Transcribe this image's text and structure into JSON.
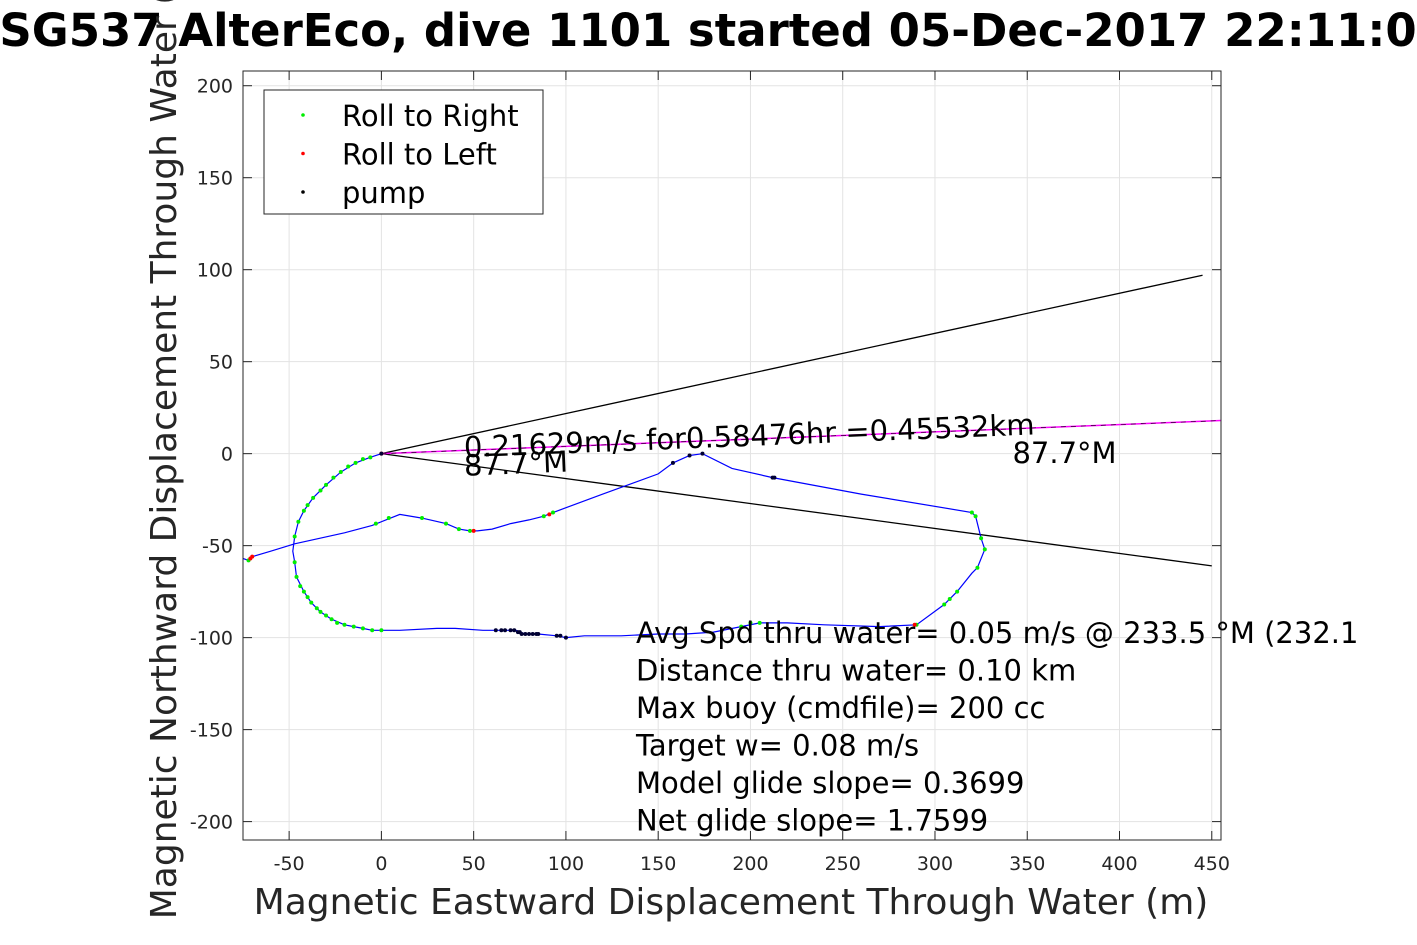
{
  "chart_data": {
    "type": "scatter",
    "title": "SG537 AlterEco, dive 1101 started 05-Dec-2017 22:11:0",
    "xlabel": "Magnetic Eastward Displacement Through Water (m)",
    "ylabel": "Magnetic Northward Displacement Through Water (",
    "xlim": [
      -75,
      455
    ],
    "ylim": [
      -210,
      208
    ],
    "xticks": [
      -50,
      0,
      50,
      100,
      150,
      200,
      250,
      300,
      350,
      400,
      450
    ],
    "yticks": [
      200,
      150,
      100,
      50,
      0,
      -50,
      -100,
      -150,
      -200
    ],
    "grid": true,
    "legend": {
      "placement": "top-left",
      "entries": [
        {
          "label": "Roll to Right",
          "color": "#00ee00"
        },
        {
          "label": "Roll to Left",
          "color": "#ff0000"
        },
        {
          "label": "pump",
          "color": "#000000"
        }
      ]
    },
    "colors": {
      "track": "#0000ff",
      "rays": "#000000",
      "heading": "#ff00ff",
      "roll_right": "#00ee00",
      "roll_left": "#ff0000",
      "pump": "#000033"
    },
    "track": [
      [
        -75,
        -57
      ],
      [
        -72,
        -58
      ],
      [
        -70,
        -56
      ],
      [
        -60,
        -53
      ],
      [
        -47,
        -49
      ],
      [
        -20,
        -43
      ],
      [
        -5,
        -39
      ],
      [
        10,
        -33
      ],
      [
        22,
        -35
      ],
      [
        35,
        -38
      ],
      [
        42,
        -41
      ],
      [
        48,
        -42
      ],
      [
        52,
        -42
      ],
      [
        60,
        -41
      ],
      [
        70,
        -38
      ],
      [
        80,
        -36
      ],
      [
        88,
        -34
      ],
      [
        93,
        -32
      ],
      [
        120,
        -22
      ],
      [
        150,
        -11
      ],
      [
        158,
        -5
      ],
      [
        167,
        -1
      ],
      [
        174,
        0
      ],
      [
        190,
        -8
      ],
      [
        212,
        -13
      ],
      [
        260,
        -22
      ],
      [
        320,
        -32
      ],
      [
        322,
        -34
      ],
      [
        325,
        -46
      ],
      [
        327,
        -52
      ],
      [
        323,
        -62
      ],
      [
        320,
        -65
      ],
      [
        312,
        -75
      ],
      [
        305,
        -82
      ],
      [
        290,
        -93
      ],
      [
        270,
        -94
      ],
      [
        240,
        -93
      ],
      [
        220,
        -92
      ],
      [
        205,
        -92
      ],
      [
        195,
        -94
      ],
      [
        180,
        -97
      ],
      [
        165,
        -98
      ],
      [
        150,
        -98
      ],
      [
        130,
        -99
      ],
      [
        110,
        -99
      ],
      [
        100,
        -100
      ],
      [
        95,
        -99
      ],
      [
        85,
        -98
      ],
      [
        78,
        -98
      ],
      [
        73,
        -96
      ],
      [
        67,
        -96
      ],
      [
        62,
        -96
      ],
      [
        55,
        -96
      ],
      [
        40,
        -95
      ],
      [
        30,
        -95
      ],
      [
        10,
        -96
      ],
      [
        0,
        -96
      ],
      [
        -5,
        -96
      ],
      [
        -10,
        -95
      ],
      [
        -15,
        -94
      ],
      [
        -20,
        -93
      ],
      [
        -27,
        -90
      ],
      [
        -33,
        -86
      ],
      [
        -38,
        -81
      ],
      [
        -42,
        -75
      ],
      [
        -46,
        -67
      ],
      [
        -47,
        -59
      ],
      [
        -48,
        -53
      ],
      [
        -47,
        -45
      ],
      [
        -45,
        -37
      ],
      [
        -42,
        -31
      ],
      [
        -37,
        -24
      ],
      [
        -30,
        -17
      ],
      [
        -22,
        -10
      ],
      [
        -14,
        -5
      ],
      [
        -6,
        -2
      ],
      [
        0,
        0
      ]
    ],
    "roll_right_points": [
      [
        -72,
        -58
      ],
      [
        -47,
        -59
      ],
      [
        -47,
        -45
      ],
      [
        -45,
        -37
      ],
      [
        -42,
        -31
      ],
      [
        -40,
        -28
      ],
      [
        -37,
        -24
      ],
      [
        -33,
        -20
      ],
      [
        -30,
        -17
      ],
      [
        -26,
        -13
      ],
      [
        -22,
        -10
      ],
      [
        -18,
        -7
      ],
      [
        -14,
        -5
      ],
      [
        -10,
        -3
      ],
      [
        -6,
        -2
      ],
      [
        -46,
        -67
      ],
      [
        -44,
        -72
      ],
      [
        -42,
        -75
      ],
      [
        -40,
        -78
      ],
      [
        -38,
        -81
      ],
      [
        -35,
        -84
      ],
      [
        -33,
        -86
      ],
      [
        -30,
        -88
      ],
      [
        -27,
        -90
      ],
      [
        -24,
        -92
      ],
      [
        -20,
        -93
      ],
      [
        -15,
        -94
      ],
      [
        -10,
        -95
      ],
      [
        -5,
        -96
      ],
      [
        0,
        -96
      ],
      [
        -3,
        -38
      ],
      [
        4,
        -35
      ],
      [
        22,
        -35
      ],
      [
        35,
        -38
      ],
      [
        42,
        -41
      ],
      [
        48,
        -42
      ],
      [
        88,
        -34
      ],
      [
        93,
        -32
      ],
      [
        320,
        -32
      ],
      [
        322,
        -34
      ],
      [
        325,
        -46
      ],
      [
        327,
        -52
      ],
      [
        323,
        -62
      ],
      [
        312,
        -75
      ],
      [
        308,
        -79
      ],
      [
        305,
        -82
      ],
      [
        290,
        -93
      ],
      [
        200,
        -92
      ],
      [
        205,
        -92
      ],
      [
        195,
        -94
      ]
    ],
    "roll_left_points": [
      [
        -71,
        -57
      ],
      [
        -70,
        -56
      ],
      [
        0,
        0
      ],
      [
        50,
        -42
      ],
      [
        91,
        -33
      ],
      [
        289,
        -93
      ]
    ],
    "pump_points": [
      [
        0,
        0
      ],
      [
        158,
        -5
      ],
      [
        167,
        -1
      ],
      [
        174,
        0
      ],
      [
        212,
        -13
      ],
      [
        213,
        -13
      ],
      [
        62,
        -96
      ],
      [
        65,
        -96
      ],
      [
        67,
        -96
      ],
      [
        70,
        -96
      ],
      [
        72,
        -96
      ],
      [
        74,
        -97
      ],
      [
        75,
        -97
      ],
      [
        76,
        -98
      ],
      [
        78,
        -98
      ],
      [
        80,
        -98
      ],
      [
        82,
        -98
      ],
      [
        84,
        -98
      ],
      [
        85,
        -98
      ],
      [
        95,
        -99
      ],
      [
        97,
        -99
      ],
      [
        100,
        -100
      ]
    ],
    "rays": [
      [
        [
          0,
          0
        ],
        [
          445,
          97
        ]
      ],
      [
        [
          0,
          0
        ],
        [
          450,
          -61
        ]
      ]
    ],
    "heading_line": [
      [
        0,
        0
      ],
      [
        455,
        18
      ]
    ],
    "annotations": [
      {
        "text": "0.21629m/s for0.58476hr =0.45532km",
        "x": 45,
        "y": -2,
        "rotate": -2.3
      },
      {
        "text": "87.7°M",
        "x": 45,
        "y": -12,
        "rotate": -2.3
      },
      {
        "text": "87.7°M",
        "x": 342,
        "y": -5,
        "rotate": 0
      }
    ],
    "stats": [
      "Avg Spd thru water=  0.05 m/s @ 233.5 °M (232.1",
      "Distance thru water=  0.10 km",
      "Max buoy (cmdfile)= 200 cc",
      "Target w= 0.08 m/s",
      "Model glide slope= 0.3699",
      "Net glide slope= 1.7599"
    ]
  }
}
